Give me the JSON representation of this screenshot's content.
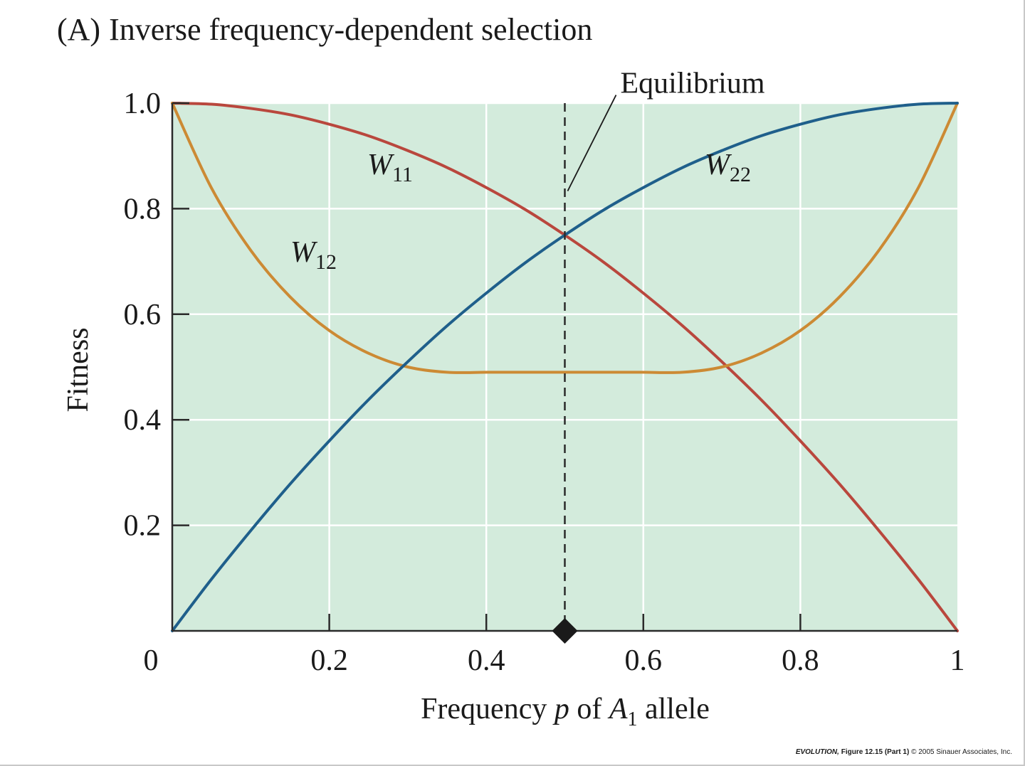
{
  "chart_data": {
    "type": "line",
    "panel_label": "(A)",
    "title": "Inverse frequency-dependent selection",
    "xlabel": {
      "prefix": "Frequency ",
      "var": "p",
      "middle": " of ",
      "allele": "A",
      "allele_sub": "1",
      "suffix": " allele"
    },
    "ylabel": "Fitness",
    "xlim": [
      0,
      1
    ],
    "ylim": [
      0,
      1
    ],
    "x_ticks": [
      0.2,
      0.4,
      0.6,
      0.8
    ],
    "x_tick_labels": [
      "0",
      "0.2",
      "0.4",
      "0.6",
      "0.8",
      "1"
    ],
    "y_ticks": [
      0.2,
      0.4,
      0.6,
      0.8,
      1.0
    ],
    "y_tick_labels": [
      "0.2",
      "0.4",
      "0.6",
      "0.8",
      "1.0"
    ],
    "grid": true,
    "x": [
      0,
      0.05,
      0.1,
      0.15,
      0.2,
      0.25,
      0.3,
      0.35,
      0.4,
      0.45,
      0.5,
      0.55,
      0.6,
      0.65,
      0.7,
      0.75,
      0.8,
      0.85,
      0.9,
      0.95,
      1.0
    ],
    "series": [
      {
        "name": "W11",
        "main": "W",
        "sub": "11",
        "color": "#b9473d",
        "values": [
          1.0,
          0.998,
          0.99,
          0.978,
          0.96,
          0.938,
          0.91,
          0.878,
          0.84,
          0.798,
          0.75,
          0.698,
          0.64,
          0.578,
          0.51,
          0.438,
          0.36,
          0.278,
          0.19,
          0.098,
          0.0
        ]
      },
      {
        "name": "W12",
        "main": "W",
        "sub": "12",
        "color": "#cc8a34",
        "values": [
          1.0,
          0.839,
          0.721,
          0.633,
          0.569,
          0.526,
          0.5,
          0.49,
          0.49,
          0.49,
          0.49,
          0.49,
          0.49,
          0.49,
          0.5,
          0.526,
          0.569,
          0.633,
          0.721,
          0.839,
          1.0
        ]
      },
      {
        "name": "W22",
        "main": "W",
        "sub": "22",
        "color": "#1f5f8b",
        "values": [
          0.0,
          0.098,
          0.19,
          0.278,
          0.36,
          0.438,
          0.51,
          0.578,
          0.64,
          0.698,
          0.75,
          0.798,
          0.84,
          0.878,
          0.91,
          0.938,
          0.96,
          0.978,
          0.99,
          0.998,
          1.0
        ]
      }
    ],
    "equilibrium": {
      "label": "Equilibrium",
      "x": 0.5,
      "y": 0.82
    }
  },
  "credit": {
    "book": "EVOLUTION,",
    "figure": " Figure 12.15 (Part 1)",
    "copyright": "  © 2005 Sinauer Associates, Inc."
  },
  "colors": {
    "plot_bg": "#d3ebdc",
    "grid": "#ffffff",
    "axis": "#2a2a2a",
    "marker": "#1a1a1a"
  }
}
